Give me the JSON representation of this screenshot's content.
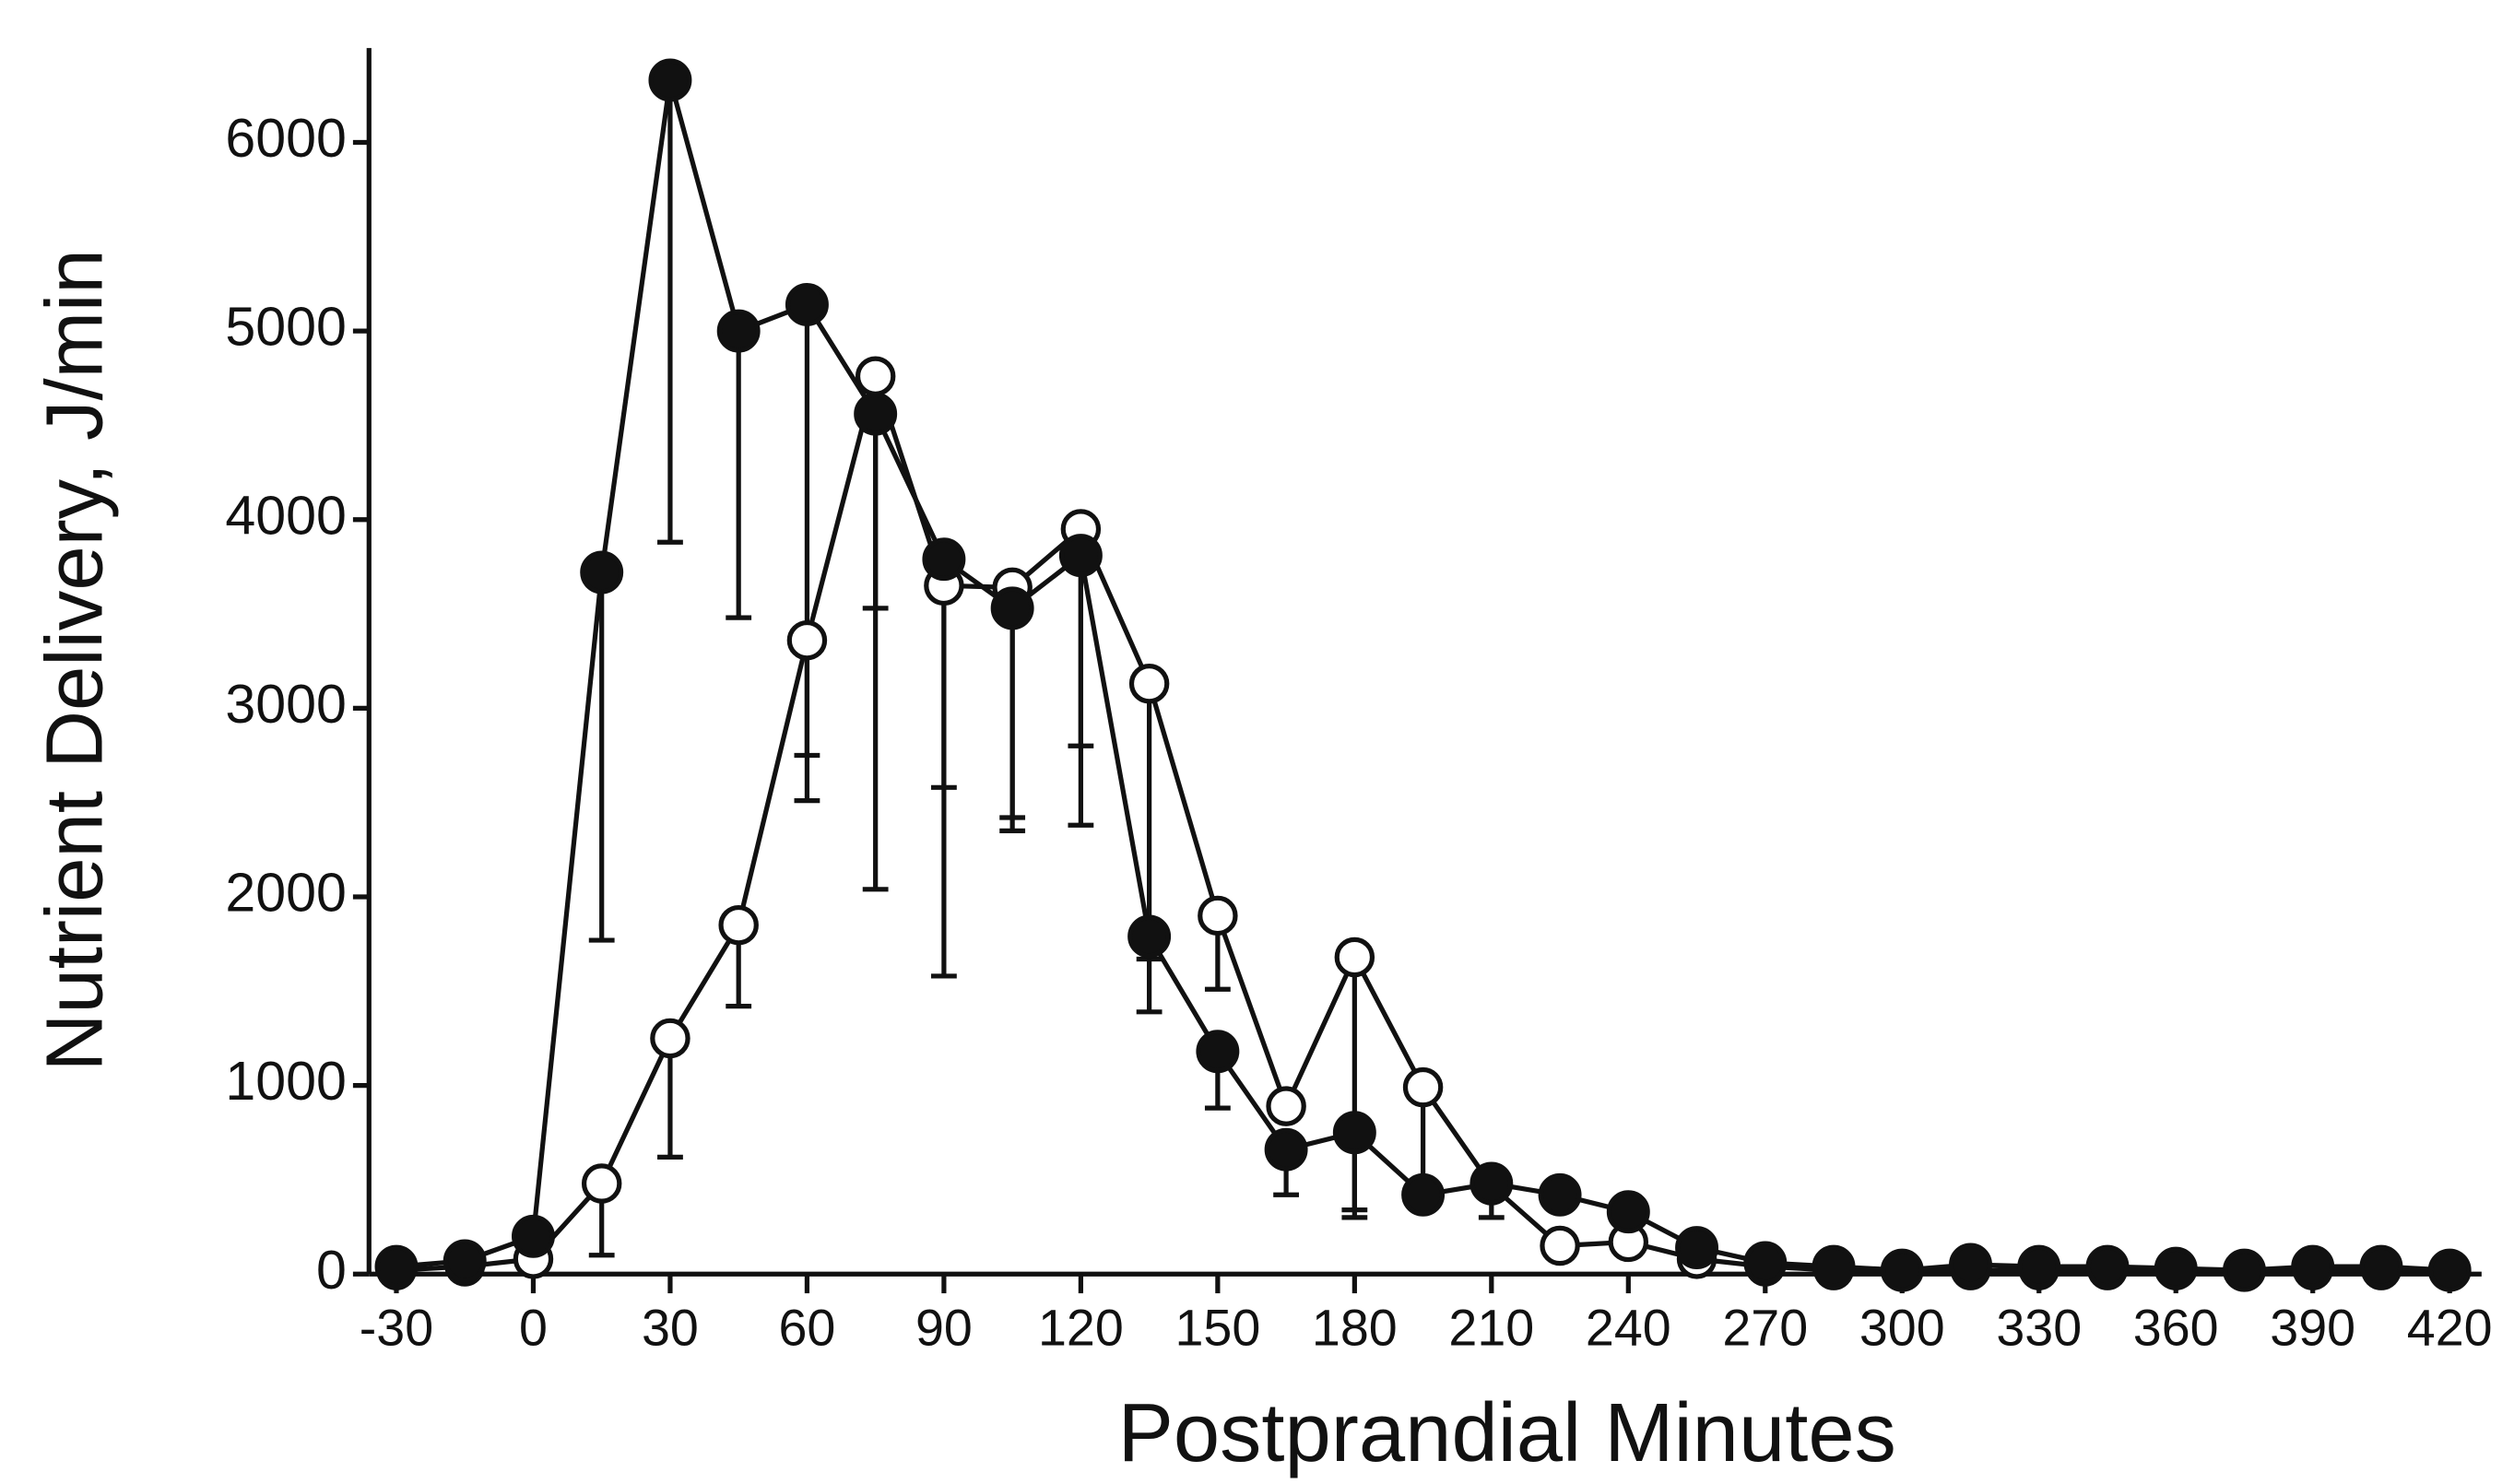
{
  "chart_data": {
    "type": "line",
    "x_label": "Postprandial Minutes",
    "y_label": "Nutrient Delivery, J/min",
    "x": [
      -30,
      -15,
      0,
      15,
      30,
      45,
      60,
      75,
      90,
      105,
      120,
      135,
      150,
      165,
      180,
      195,
      210,
      225,
      240,
      255,
      270,
      285,
      300,
      315,
      330,
      345,
      360,
      375,
      390,
      405,
      420
    ],
    "series": [
      {
        "color": "#111111",
        "marker": "filled",
        "values": [
          40,
          70,
          200,
          3720,
          6330,
          5000,
          5140,
          4560,
          3790,
          3530,
          3810,
          1790,
          1180,
          660,
          750,
          420,
          480,
          420,
          330,
          140,
          60,
          40,
          20,
          50,
          40,
          40,
          30,
          20,
          40,
          40,
          20
        ],
        "errors": [
          null,
          null,
          null,
          1950,
          2450,
          1520,
          2630,
          2520,
          2210,
          1180,
          1430,
          400,
          300,
          240,
          410,
          null,
          180,
          null,
          null,
          null,
          null,
          null,
          null,
          null,
          null,
          null,
          null,
          null,
          null,
          null,
          null
        ]
      },
      {
        "color": "#111111",
        "marker": "open",
        "values": [
          20,
          40,
          80,
          480,
          1250,
          1850,
          3360,
          4760,
          3650,
          3640,
          3950,
          3130,
          1900,
          890,
          1680,
          990,
          470,
          150,
          170,
          80,
          40,
          20,
          20,
          20,
          20,
          20,
          20,
          20,
          20,
          20,
          20
        ],
        "errors": [
          null,
          null,
          null,
          380,
          630,
          430,
          610,
          1230,
          1070,
          1220,
          1150,
          1460,
          390,
          null,
          1380,
          590,
          null,
          null,
          null,
          null,
          null,
          null,
          null,
          null,
          null,
          null,
          null,
          null,
          null,
          null,
          null
        ]
      }
    ],
    "xlim": [
      -36,
      427
    ],
    "xticks": [
      -30,
      0,
      30,
      60,
      90,
      120,
      150,
      180,
      210,
      240,
      270,
      300,
      330,
      360,
      390,
      420
    ],
    "ylim": [
      0,
      6500
    ],
    "yticks": [
      0,
      1000,
      2000,
      3000,
      4000,
      5000,
      6000
    ],
    "grid": false
  }
}
